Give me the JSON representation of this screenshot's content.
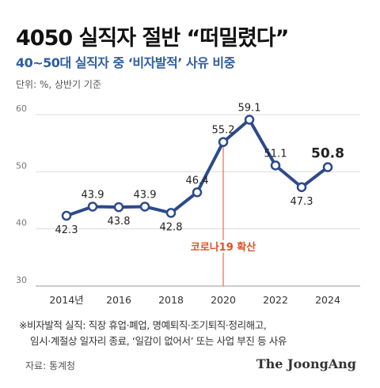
{
  "title": "4050 실직자 절반 “떠밀렸다”",
  "subtitle": "40~50대 실직자 중 ‘비자발적’ 사유 비중",
  "unit_note": "단위: %, 상반기 기준",
  "chart_data": {
    "type": "line",
    "x": [
      2014,
      2015,
      2016,
      2017,
      2018,
      2019,
      2020,
      2021,
      2022,
      2023,
      2024
    ],
    "x_tick_labels": [
      "2014년",
      "2016",
      "2018",
      "2020",
      "2022",
      "2024"
    ],
    "x_tick_values": [
      2014,
      2016,
      2018,
      2020,
      2022,
      2024
    ],
    "series": [
      {
        "values": [
          42.3,
          43.9,
          43.8,
          43.9,
          42.8,
          46.4,
          55.2,
          59.1,
          51.1,
          47.3,
          50.8
        ]
      }
    ],
    "value_labels": [
      "42.3",
      "43.9",
      "43.8",
      "43.9",
      "42.8",
      "46.4",
      "55.2",
      "59.1",
      "51.1",
      "47.3",
      "50.8"
    ],
    "ylim": [
      30,
      60
    ],
    "y_ticks": [
      30,
      40,
      50,
      60
    ],
    "grid": true,
    "annotation": {
      "text": "코로나19 확산",
      "x": 2020
    },
    "line_color": "#2c4a8c",
    "annotation_color": "#e0502a",
    "marker_fill": "#ffffff"
  },
  "footnote": [
    "※비자발적 실직: 직장 휴업·폐업, 명예퇴직·조기퇴직·정리해고,",
    "임시·계절상 일자리 종료, ‘일감이 없어서’ 또는 사업 부진 등 사유"
  ],
  "source": "자료: 통계청",
  "brand": "The JoongAng"
}
